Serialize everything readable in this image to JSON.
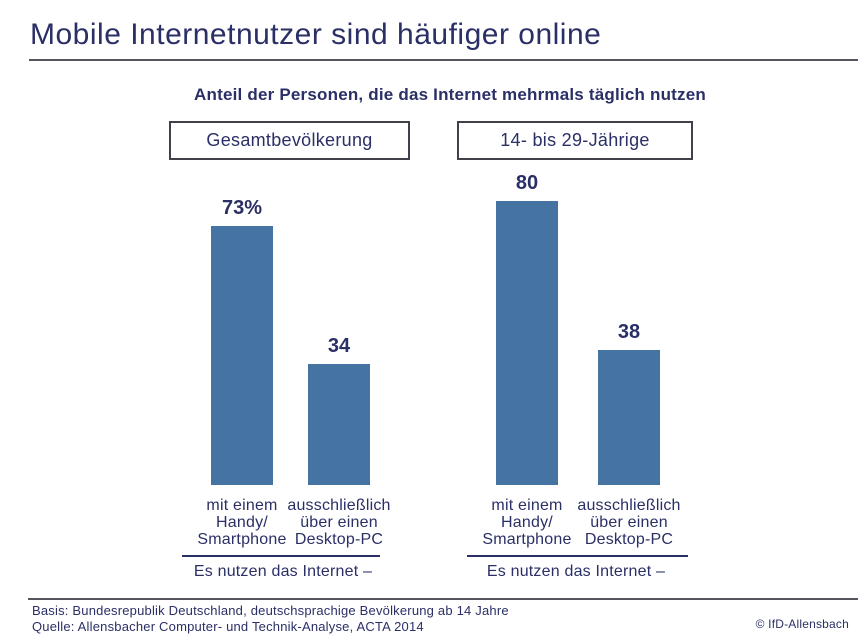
{
  "header": {
    "title": "Mobile Internetnutzer sind häufiger online"
  },
  "colors": {
    "navy_text": "#2a2f66",
    "bar_blue": "#4573a2",
    "rule_gray": "#55555e",
    "box_border": "#41414b"
  },
  "chart_data": {
    "type": "bar",
    "title": "Anteil der Personen, die das Internet mehrmals täglich nutzen",
    "unit": "percent",
    "ylim": [
      0,
      100
    ],
    "bar_color": "#4573a2",
    "axis_note": "Es nutzen das Internet –",
    "category_lines": [
      [
        "mit einem",
        "Handy/",
        "Smartphone"
      ],
      [
        "ausschließlich",
        "über einen",
        "Desktop-PC"
      ]
    ],
    "groups": [
      {
        "name": "Gesamtbevölkerung",
        "categories": [
          "mit einem Handy/Smartphone",
          "ausschließlich über einen Desktop-PC"
        ],
        "values": [
          73,
          34
        ],
        "value_labels": [
          "73%",
          "34"
        ]
      },
      {
        "name": "14- bis 29-Jährige",
        "categories": [
          "mit einem Handy/Smartphone",
          "ausschließlich über einen Desktop-PC"
        ],
        "values": [
          80,
          38
        ],
        "value_labels": [
          "80",
          "38"
        ]
      }
    ]
  },
  "footer": {
    "basis": "Basis: Bundesrepublik Deutschland, deutschsprachige Bevölkerung ab 14 Jahre",
    "quelle": "Quelle: Allensbacher Computer- und Technik-Analyse, ACTA 2014",
    "copyright": "© IfD-Allensbach"
  }
}
